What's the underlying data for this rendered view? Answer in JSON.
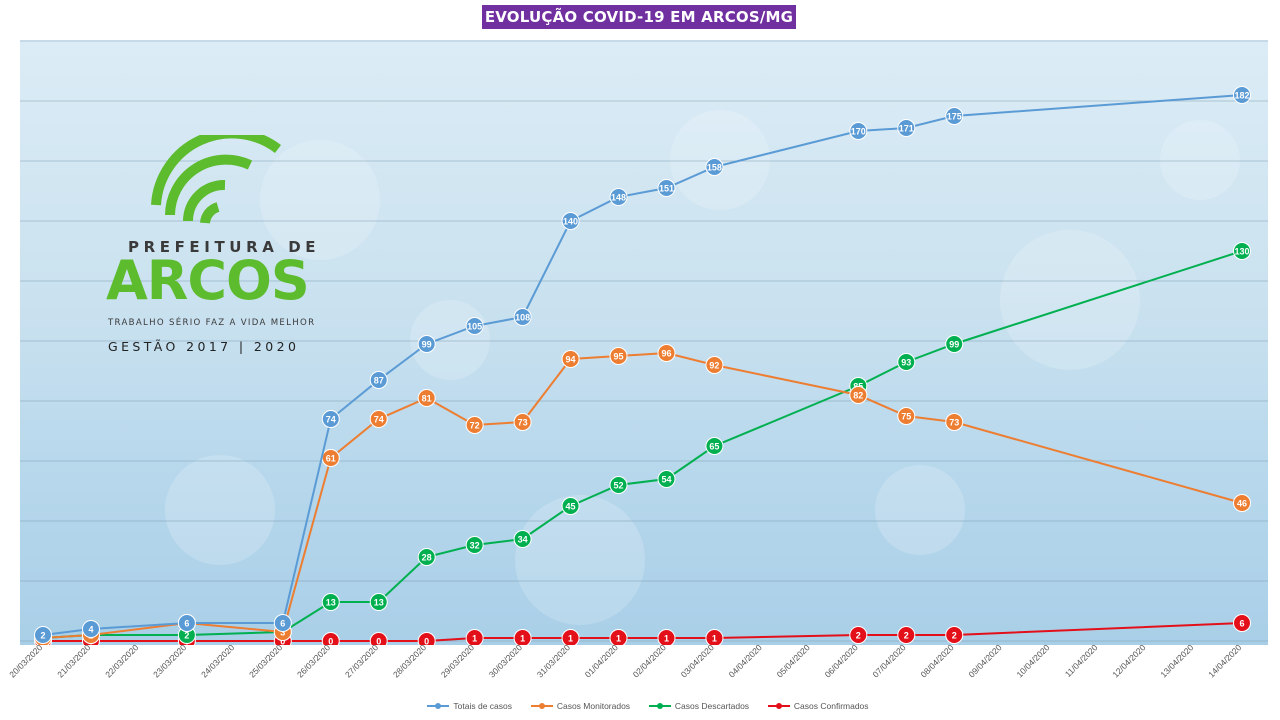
{
  "chart_data": {
    "type": "line",
    "title": "EVOLUÇÃO COVID-19 EM ARCOS/MG",
    "categories": [
      "20/03/2020",
      "21/03/2020",
      "22/03/2020",
      "23/03/2020",
      "24/03/2020",
      "25/03/2020",
      "26/03/2020",
      "27/03/2020",
      "28/03/2020",
      "29/03/2020",
      "30/03/2020",
      "31/03/2020",
      "01/04/2020",
      "02/04/2020",
      "03/04/2020",
      "04/04/2020",
      "05/04/2020",
      "06/04/2020",
      "07/04/2020",
      "08/04/2020",
      "09/04/2020",
      "10/04/2020",
      "11/04/2020",
      "12/04/2020",
      "13/04/2020",
      "14/04/2020"
    ],
    "series": [
      {
        "name": "Totais de casos",
        "color": "#5b9bd5",
        "points": [
          [
            0,
            2
          ],
          [
            1,
            4
          ],
          [
            3,
            6
          ],
          [
            5,
            6
          ],
          [
            6,
            74
          ],
          [
            7,
            87
          ],
          [
            8,
            99
          ],
          [
            9,
            105
          ],
          [
            10,
            108
          ],
          [
            11,
            140
          ],
          [
            12,
            148
          ],
          [
            13,
            151
          ],
          [
            14,
            158
          ],
          [
            17,
            170
          ],
          [
            18,
            171
          ],
          [
            19,
            175
          ],
          [
            25,
            182
          ]
        ]
      },
      {
        "name": "Casos Monitorados",
        "color": "#ed7d31",
        "points": [
          [
            0,
            1
          ],
          [
            1,
            2
          ],
          [
            3,
            6
          ],
          [
            5,
            3
          ],
          [
            6,
            61
          ],
          [
            7,
            74
          ],
          [
            8,
            81
          ],
          [
            9,
            72
          ],
          [
            10,
            73
          ],
          [
            11,
            94
          ],
          [
            12,
            95
          ],
          [
            13,
            96
          ],
          [
            14,
            92
          ],
          [
            17,
            82
          ],
          [
            18,
            75
          ],
          [
            19,
            73
          ],
          [
            25,
            46
          ]
        ]
      },
      {
        "name": "Casos Descartados",
        "color": "#00b050",
        "points": [
          [
            0,
            1
          ],
          [
            1,
            2
          ],
          [
            3,
            2
          ],
          [
            5,
            3
          ],
          [
            6,
            13
          ],
          [
            7,
            13
          ],
          [
            8,
            28
          ],
          [
            9,
            32
          ],
          [
            10,
            34
          ],
          [
            11,
            45
          ],
          [
            12,
            52
          ],
          [
            13,
            54
          ],
          [
            14,
            65
          ],
          [
            17,
            85
          ],
          [
            18,
            93
          ],
          [
            19,
            99
          ],
          [
            25,
            130
          ]
        ]
      },
      {
        "name": "Casos Confirmados",
        "color": "#e3101a",
        "points": [
          [
            0,
            0
          ],
          [
            1,
            0
          ],
          [
            3,
            0
          ],
          [
            5,
            0
          ],
          [
            6,
            0
          ],
          [
            7,
            0
          ],
          [
            8,
            0
          ],
          [
            9,
            1
          ],
          [
            10,
            1
          ],
          [
            11,
            1
          ],
          [
            12,
            1
          ],
          [
            13,
            1
          ],
          [
            14,
            1
          ],
          [
            17,
            2
          ],
          [
            18,
            2
          ],
          [
            19,
            2
          ],
          [
            25,
            6
          ]
        ]
      }
    ],
    "ylim": [
      0,
      200
    ],
    "grid": true,
    "legend": "bottom"
  },
  "logo": {
    "prefeitura": "PREFEITURA DE",
    "arcos": "ARCOS",
    "slogan": "TRABALHO SÉRIO FAZ A VIDA MELHOR",
    "gestao": "GESTÃO 2017 | 2020",
    "color": "#5dbb2e"
  }
}
